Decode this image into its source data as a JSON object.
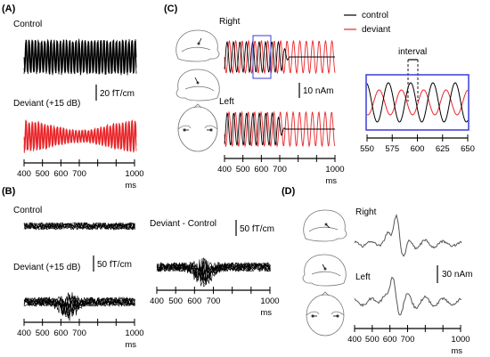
{
  "panels": {
    "A": {
      "label": "(A)",
      "control_label": "Control",
      "deviant_label": "Deviant (+15 dB)",
      "scalebar": "20 fT/cm",
      "axis": {
        "ticks": [
          "400",
          "500",
          "600",
          "700",
          "1000"
        ],
        "unit": "ms"
      }
    },
    "B": {
      "label": "(B)",
      "control_label": "Control",
      "deviant_label": "Deviant (+15 dB)",
      "diff_label": "Deviant - Control",
      "scalebar_left": "50 fT/cm",
      "scalebar_right": "50 fT/cm",
      "axis": {
        "ticks": [
          "400",
          "500",
          "600",
          "700",
          "1000"
        ],
        "unit": "ms"
      }
    },
    "C": {
      "label": "(C)",
      "right_label": "Right",
      "left_label": "Left",
      "scalebar": "10 nAm",
      "legend": [
        {
          "name": "control",
          "color": "#000000"
        },
        {
          "name": "deviant",
          "color": "#e8262a"
        }
      ],
      "axis": {
        "ticks": [
          "400",
          "500",
          "600",
          "700",
          "1000"
        ],
        "unit": "ms"
      },
      "inset": {
        "annotation": "interval",
        "ticks": [
          "550",
          "575",
          "600",
          "625",
          "650"
        ],
        "box_color": "#3b3bd6"
      }
    },
    "D": {
      "label": "(D)",
      "right_label": "Right",
      "left_label": "Left",
      "scalebar": "30 nAm",
      "axis": {
        "ticks": [
          "400",
          "500",
          "600",
          "700",
          "1000"
        ],
        "unit": "ms"
      }
    }
  },
  "colors": {
    "control": "#000000",
    "deviant": "#e8262a",
    "inset_box": "#3b3bd6"
  }
}
